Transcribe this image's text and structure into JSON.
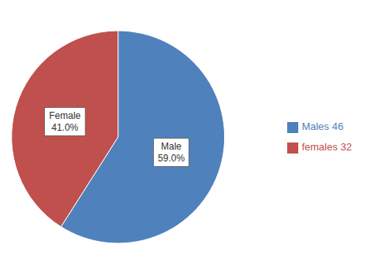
{
  "chart_data": {
    "type": "pie",
    "categories": [
      "Males 46",
      "females 32"
    ],
    "values": [
      59.0,
      41.0
    ],
    "value_labels": [
      "Male\n59.0%",
      "Female\n41.0%"
    ],
    "colors": [
      "#4f81bd",
      "#c0504d"
    ],
    "data_labels": true,
    "legend": "right"
  }
}
